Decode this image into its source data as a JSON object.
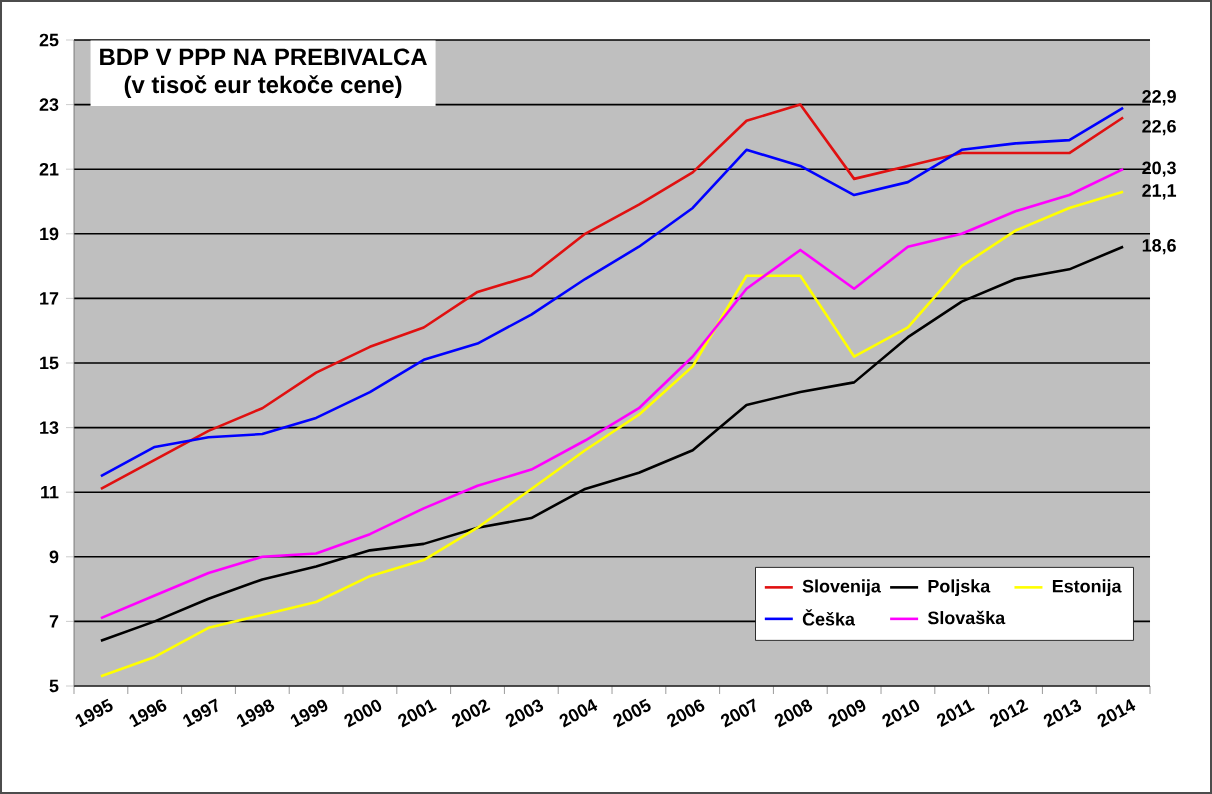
{
  "chart_data": {
    "type": "line",
    "title": "BDP V PPP NA PREBIVALCA",
    "subtitle": "(v tisoč eur tekoče cene)",
    "categories": [
      "1995",
      "1996",
      "1997",
      "1998",
      "1999",
      "2000",
      "2001",
      "2002",
      "2003",
      "2004",
      "2005",
      "2006",
      "2007",
      "2008",
      "2009",
      "2010",
      "2011",
      "2012",
      "2013",
      "2014"
    ],
    "series": [
      {
        "name": "Slovenija",
        "color": "#e01010",
        "values": [
          11.1,
          12.0,
          12.9,
          13.6,
          14.7,
          15.5,
          16.1,
          17.2,
          17.7,
          19.0,
          19.9,
          20.9,
          22.5,
          23.0,
          20.7,
          21.1,
          21.5,
          21.5,
          21.5,
          22.6
        ]
      },
      {
        "name": "Poljska",
        "color": "#000000",
        "values": [
          6.4,
          7.0,
          7.7,
          8.3,
          8.7,
          9.2,
          9.4,
          9.9,
          10.2,
          11.1,
          11.6,
          12.3,
          13.7,
          14.1,
          14.4,
          15.8,
          16.9,
          17.6,
          17.9,
          18.6
        ]
      },
      {
        "name": "Estonija",
        "color": "#ffff00",
        "values": [
          5.3,
          5.9,
          6.8,
          7.2,
          7.6,
          8.4,
          8.9,
          9.9,
          11.1,
          12.3,
          13.4,
          14.9,
          17.7,
          17.7,
          15.2,
          16.1,
          18.0,
          19.1,
          19.8,
          20.3
        ]
      },
      {
        "name": "Češka",
        "color": "#0000ff",
        "values": [
          11.5,
          12.4,
          12.7,
          12.8,
          13.3,
          14.1,
          15.1,
          15.6,
          16.5,
          17.6,
          18.6,
          19.8,
          21.6,
          21.1,
          20.2,
          20.6,
          21.6,
          21.8,
          21.9,
          22.9
        ]
      },
      {
        "name": "Slovaška",
        "color": "#ff00ff",
        "values": [
          7.1,
          7.8,
          8.5,
          9.0,
          9.1,
          9.7,
          10.5,
          11.2,
          11.7,
          12.6,
          13.6,
          15.2,
          17.3,
          18.5,
          17.3,
          18.6,
          19.0,
          19.7,
          20.2,
          21.0
        ]
      }
    ],
    "annotations": [
      {
        "text": "22,9",
        "x": "2014",
        "y": 22.9
      },
      {
        "text": "22,6",
        "x": "2014",
        "y": 22.6
      },
      {
        "text": "20,3",
        "x": "2014",
        "y": 21.0
      },
      {
        "text": "21,1",
        "x": "2014",
        "y": 20.3
      },
      {
        "text": "18,6",
        "x": "2014",
        "y": 18.6
      }
    ],
    "ylim": [
      5,
      25
    ],
    "yticks": [
      5,
      7,
      9,
      11,
      13,
      15,
      17,
      19,
      21,
      23,
      25
    ],
    "grid": "y",
    "legend": "bottom right",
    "marker": "none",
    "line_style": "solid"
  }
}
